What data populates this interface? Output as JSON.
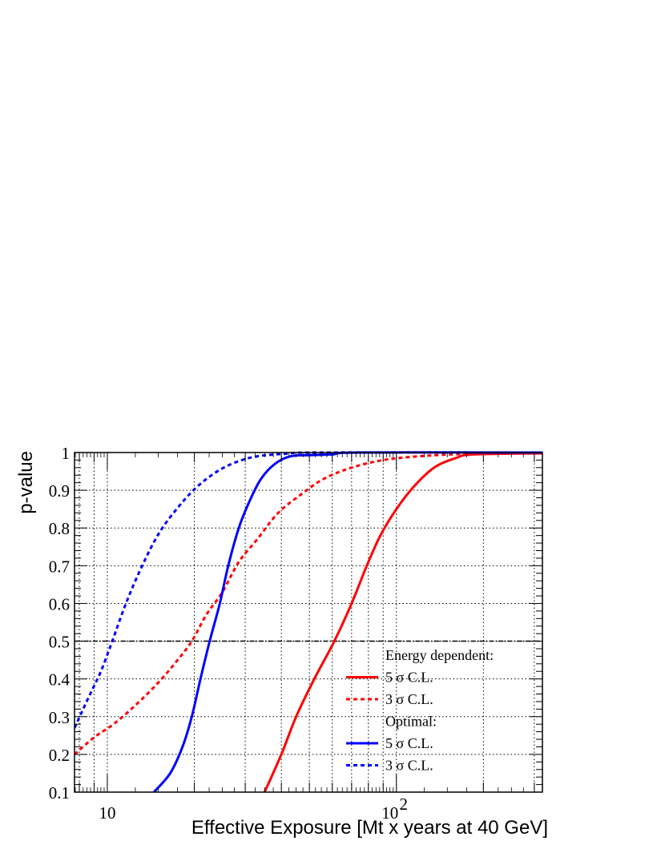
{
  "chart_data": {
    "type": "line",
    "xlabel": "Effective Exposure [Mt x years at 40 GeV]",
    "ylabel": "p-value",
    "x_scale": "log",
    "xlim": [
      7.7,
      320
    ],
    "ylim": [
      0.1,
      1.0
    ],
    "x_ticks": [
      {
        "value": 10,
        "label": "10"
      },
      {
        "value": 100,
        "label": "10",
        "exponent": "2"
      }
    ],
    "y_ticks": [
      {
        "value": 0.1,
        "label": "0.1"
      },
      {
        "value": 0.2,
        "label": "0.2"
      },
      {
        "value": 0.3,
        "label": "0.3"
      },
      {
        "value": 0.4,
        "label": "0.4"
      },
      {
        "value": 0.5,
        "label": "0.5"
      },
      {
        "value": 0.6,
        "label": "0.6"
      },
      {
        "value": 0.7,
        "label": "0.7"
      },
      {
        "value": 0.8,
        "label": "0.8"
      },
      {
        "value": 0.9,
        "label": "0.9"
      },
      {
        "value": 1.0,
        "label": "1"
      }
    ],
    "grid": true,
    "reference_line": {
      "y": 0.5,
      "style": "dash-dot",
      "color": "#000000"
    },
    "legend": {
      "position": "bottom-right",
      "entries": [
        {
          "type": "header",
          "text": "Energy dependent:"
        },
        {
          "type": "line",
          "text": "5 σ C.L.",
          "series": 0
        },
        {
          "type": "line",
          "text": "3 σ C.L.",
          "series": 1
        },
        {
          "type": "header",
          "text": "Optimal:"
        },
        {
          "type": "line",
          "text": "5 σ C.L.",
          "series": 2
        },
        {
          "type": "line",
          "text": "3 σ C.L.",
          "series": 3
        }
      ]
    },
    "series": [
      {
        "group": "Energy dependent",
        "label": "5 σ C.L.",
        "color": "#ff0000",
        "style": "solid",
        "points": [
          [
            35,
            0.1
          ],
          [
            40,
            0.2
          ],
          [
            45,
            0.3
          ],
          [
            52,
            0.4
          ],
          [
            61,
            0.5
          ],
          [
            70,
            0.6
          ],
          [
            79,
            0.7
          ],
          [
            88,
            0.78
          ],
          [
            100,
            0.85
          ],
          [
            115,
            0.91
          ],
          [
            135,
            0.96
          ],
          [
            160,
            0.985
          ],
          [
            185,
            0.995
          ],
          [
            320,
            0.998
          ]
        ]
      },
      {
        "group": "Energy dependent",
        "label": "3 σ C.L.",
        "color": "#ff0000",
        "style": "dotted",
        "points": [
          [
            7.7,
            0.2
          ],
          [
            9,
            0.245
          ],
          [
            10.5,
            0.28
          ],
          [
            12.5,
            0.33
          ],
          [
            15,
            0.39
          ],
          [
            17.5,
            0.45
          ],
          [
            19.6,
            0.5
          ],
          [
            22,
            0.57
          ],
          [
            25,
            0.63
          ],
          [
            28.5,
            0.71
          ],
          [
            33,
            0.77
          ],
          [
            39,
            0.84
          ],
          [
            47,
            0.89
          ],
          [
            56,
            0.93
          ],
          [
            70,
            0.96
          ],
          [
            90,
            0.98
          ],
          [
            120,
            0.99
          ],
          [
            180,
            0.997
          ],
          [
            320,
            1.0
          ]
        ]
      },
      {
        "group": "Optimal",
        "label": "5 σ C.L.",
        "color": "#0000ff",
        "style": "solid",
        "points": [
          [
            14.5,
            0.1
          ],
          [
            16.5,
            0.15
          ],
          [
            18.2,
            0.22
          ],
          [
            19.6,
            0.3
          ],
          [
            21,
            0.4
          ],
          [
            22.6,
            0.5
          ],
          [
            24.5,
            0.6
          ],
          [
            26.2,
            0.7
          ],
          [
            28.5,
            0.8
          ],
          [
            31,
            0.87
          ],
          [
            34,
            0.93
          ],
          [
            38,
            0.97
          ],
          [
            43,
            0.99
          ],
          [
            50,
            0.993
          ],
          [
            60,
            0.995
          ],
          [
            75,
            1.0
          ],
          [
            320,
            1.0
          ]
        ]
      },
      {
        "group": "Optimal",
        "label": "3 σ C.L.",
        "color": "#0000ff",
        "style": "dotted",
        "points": [
          [
            7.7,
            0.27
          ],
          [
            8.6,
            0.35
          ],
          [
            9.5,
            0.42
          ],
          [
            10.4,
            0.5
          ],
          [
            11.6,
            0.6
          ],
          [
            13.2,
            0.7
          ],
          [
            15.2,
            0.79
          ],
          [
            17.8,
            0.86
          ],
          [
            20.5,
            0.91
          ],
          [
            24,
            0.95
          ],
          [
            28,
            0.975
          ],
          [
            33,
            0.99
          ],
          [
            42,
            0.997
          ],
          [
            55,
            1.0
          ],
          [
            320,
            1.0
          ]
        ]
      }
    ]
  }
}
